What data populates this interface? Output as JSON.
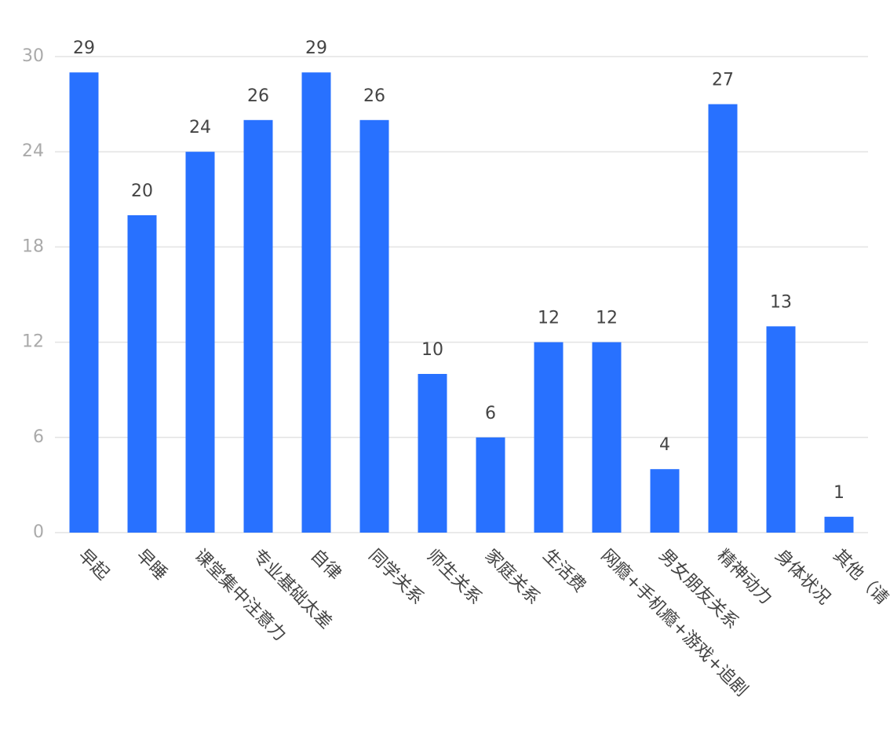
{
  "chart_data": {
    "type": "bar",
    "categories": [
      "早起",
      "早睡",
      "课堂集中注意力",
      "专业基础太差",
      "自律",
      "同学关系",
      "师生关系",
      "家庭关系",
      "生活费",
      "网瘾+手机瘾+游戏+追剧",
      "男女朋友关系",
      "精神动力",
      "身体状况",
      "其他（请"
    ],
    "values": [
      29,
      20,
      24,
      26,
      29,
      26,
      10,
      6,
      12,
      12,
      4,
      27,
      13,
      1
    ],
    "color": "#2871ff",
    "ylim": [
      0,
      30
    ],
    "yticks": [
      0,
      6,
      12,
      18,
      24,
      30
    ],
    "grid": true
  }
}
